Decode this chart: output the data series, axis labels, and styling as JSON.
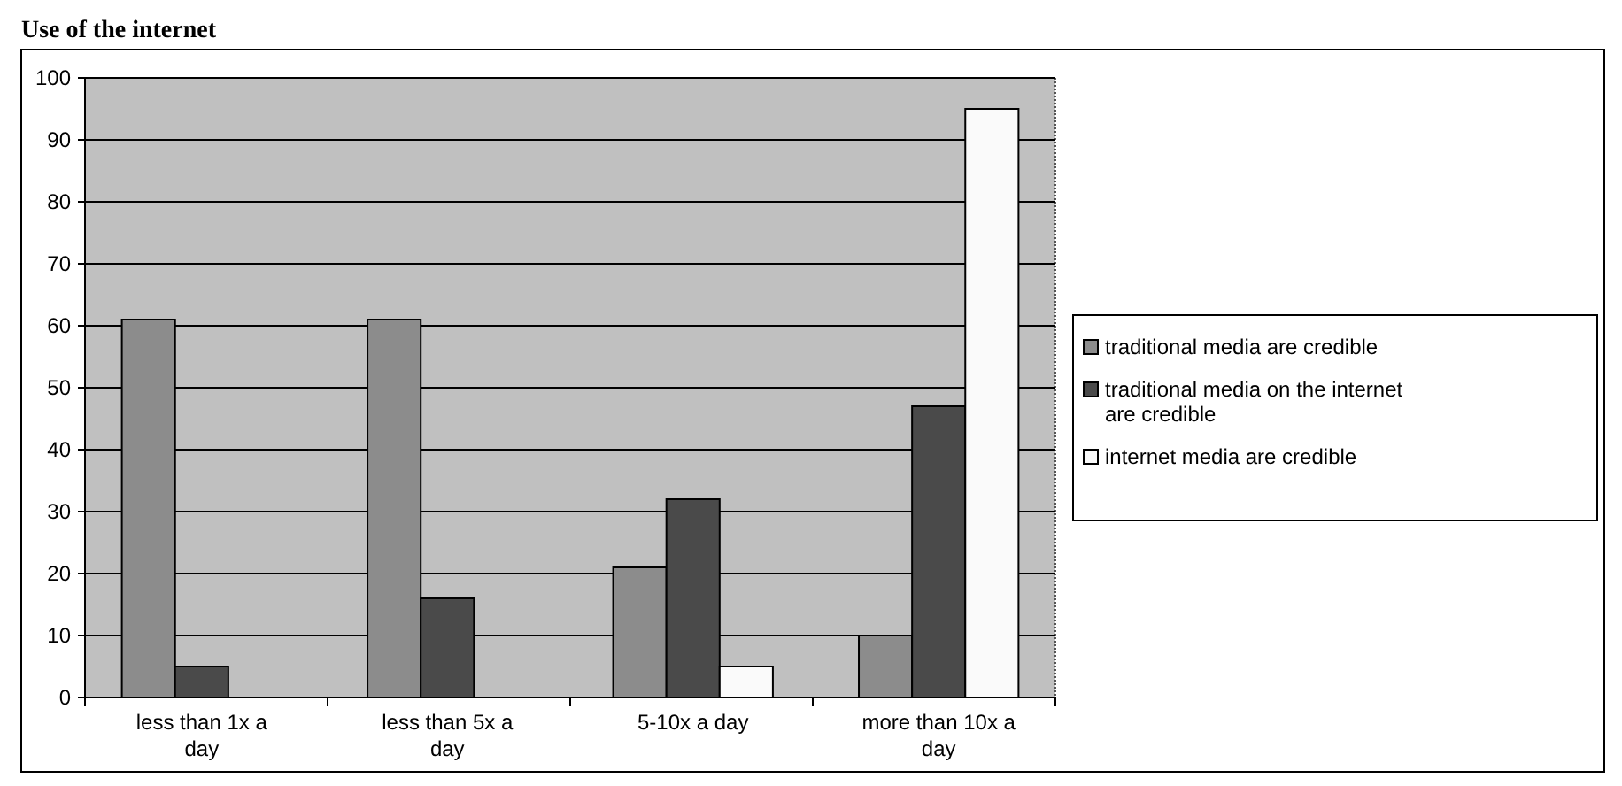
{
  "chart_data": {
    "type": "bar",
    "title": "Use of the internet",
    "categories": [
      "less than 1x a day",
      "less than 5x a day",
      "5-10x a day",
      "more than 10x a day"
    ],
    "series": [
      {
        "name": "traditional media are credible",
        "color": "#8c8c8c",
        "values": [
          61,
          61,
          21,
          10
        ]
      },
      {
        "name": "traditional media on the internet are credible",
        "color": "#4a4a4a",
        "values": [
          5,
          16,
          32,
          47
        ]
      },
      {
        "name": "internet media are credible",
        "color": "#fafafa",
        "values": [
          0,
          0,
          5,
          95
        ]
      }
    ],
    "ylim": [
      0,
      100
    ],
    "yticks": [
      0,
      10,
      20,
      30,
      40,
      50,
      60,
      70,
      80,
      90,
      100
    ],
    "grid": "y",
    "legend": "right"
  }
}
